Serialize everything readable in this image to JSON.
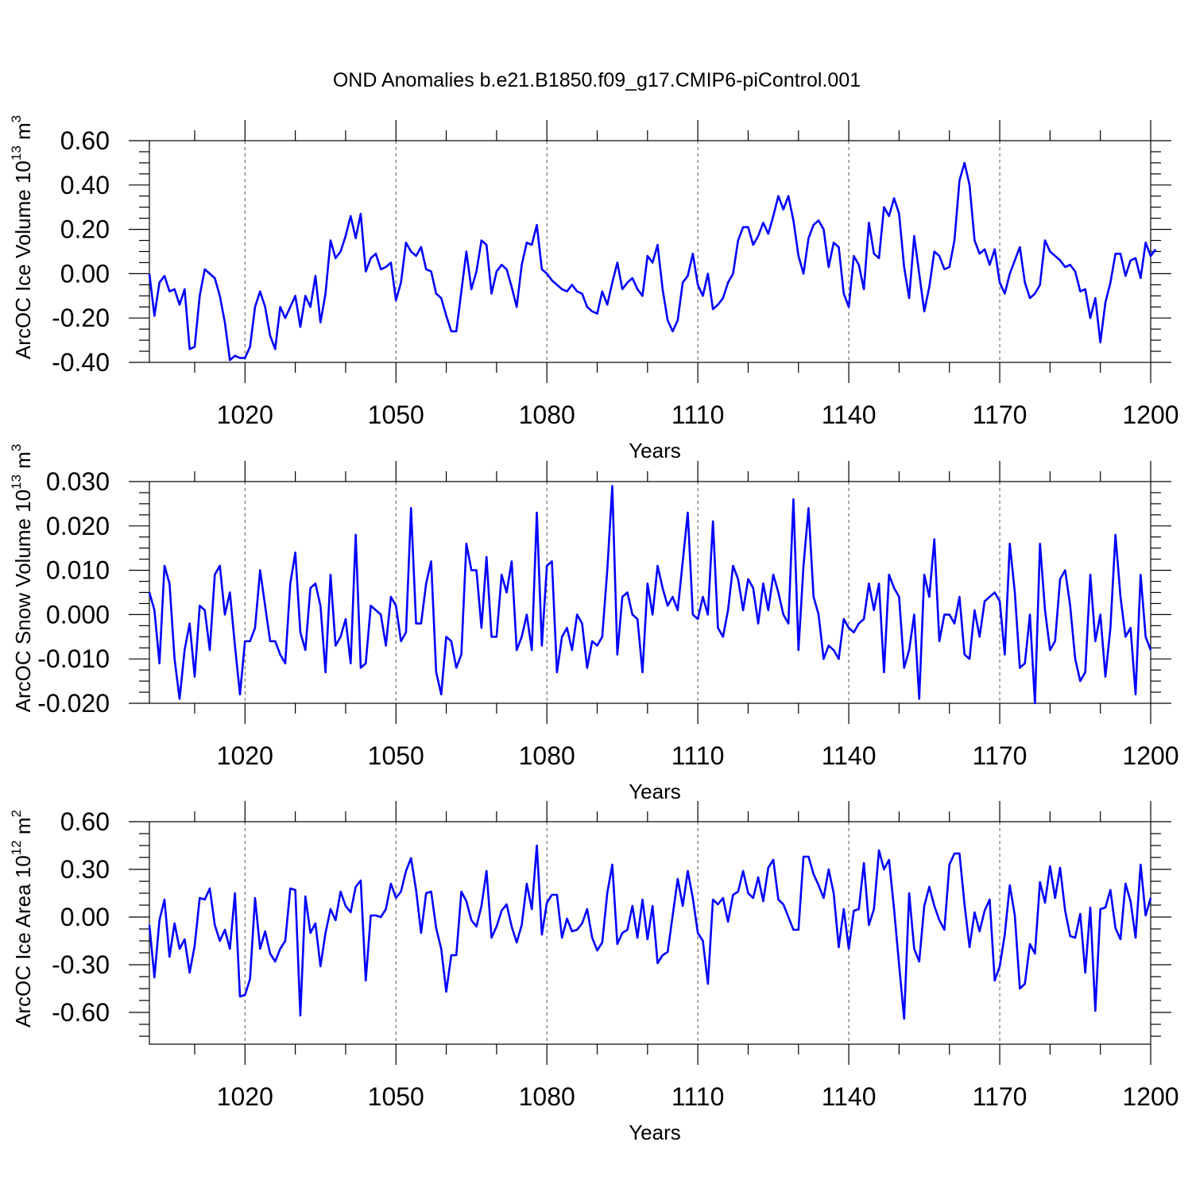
{
  "title": "OND Anomalies b.e21.B1850.f09_g17.CMIP6-piControl.001",
  "chart_data": [
    {
      "type": "line",
      "id": "ice_volume",
      "ylabel": {
        "text": "ArcOC Ice Volume 10",
        "sup": "13",
        "unit": " m",
        "unit_sup": "3"
      },
      "xlabel": "Years",
      "xlim": [
        1001,
        1200
      ],
      "ylim": [
        -0.4,
        0.6
      ],
      "xticks": [
        1020,
        1050,
        1080,
        1110,
        1140,
        1170,
        1200
      ],
      "xtick_labels": [
        "1020",
        "1050",
        "1080",
        "1110",
        "1140",
        "1170",
        "1200"
      ],
      "yticks": [
        -0.4,
        -0.2,
        0.0,
        0.2,
        0.4,
        0.6
      ],
      "ytick_labels": [
        "-0.40",
        "-0.20",
        "0.00",
        "0.20",
        "0.40",
        "0.60"
      ],
      "yminor": [
        -0.35,
        -0.3,
        -0.25,
        -0.15,
        -0.1,
        -0.05,
        0.05,
        0.1,
        0.15,
        0.25,
        0.3,
        0.35,
        0.45,
        0.5,
        0.55
      ],
      "xminor": [
        1010,
        1030,
        1040,
        1060,
        1070,
        1090,
        1100,
        1120,
        1130,
        1150,
        1160,
        1180,
        1190
      ],
      "grid": "dashed vertical at major x ticks",
      "series": [
        {
          "name": "ArcOC Ice Volume",
          "color": "#0000ff",
          "x_start": 1001,
          "values": [
            0.0,
            -0.19,
            -0.04,
            -0.01,
            -0.08,
            -0.07,
            -0.14,
            -0.07,
            -0.34,
            -0.33,
            -0.1,
            0.02,
            0.0,
            -0.02,
            -0.1,
            -0.22,
            -0.39,
            -0.37,
            -0.38,
            -0.38,
            -0.33,
            -0.15,
            -0.08,
            -0.15,
            -0.28,
            -0.34,
            -0.15,
            -0.2,
            -0.15,
            -0.1,
            -0.24,
            -0.1,
            -0.15,
            -0.01,
            -0.22,
            -0.09,
            0.15,
            0.07,
            0.1,
            0.17,
            0.26,
            0.16,
            0.27,
            0.01,
            0.07,
            0.09,
            0.02,
            0.03,
            0.05,
            -0.12,
            -0.04,
            0.14,
            0.1,
            0.08,
            0.12,
            0.02,
            0.01,
            -0.09,
            -0.11,
            -0.19,
            -0.26,
            -0.26,
            -0.08,
            0.1,
            -0.07,
            0.01,
            0.15,
            0.13,
            -0.09,
            0.01,
            0.04,
            0.02,
            -0.06,
            -0.15,
            0.04,
            0.14,
            0.13,
            0.22,
            0.02,
            0.0,
            -0.03,
            -0.05,
            -0.07,
            -0.08,
            -0.05,
            -0.08,
            -0.09,
            -0.15,
            -0.17,
            -0.18,
            -0.08,
            -0.14,
            -0.04,
            0.05,
            -0.07,
            -0.04,
            -0.02,
            -0.07,
            -0.1,
            0.08,
            0.05,
            0.13,
            -0.07,
            -0.21,
            -0.26,
            -0.21,
            -0.04,
            -0.01,
            0.09,
            -0.05,
            -0.1,
            0.0,
            -0.16,
            -0.14,
            -0.11,
            -0.04,
            0.0,
            0.15,
            0.21,
            0.21,
            0.13,
            0.17,
            0.23,
            0.18,
            0.26,
            0.35,
            0.29,
            0.35,
            0.24,
            0.08,
            0.0,
            0.16,
            0.22,
            0.24,
            0.2,
            0.03,
            0.14,
            0.12,
            -0.09,
            -0.15,
            0.08,
            0.04,
            -0.07,
            0.23,
            0.09,
            0.07,
            0.3,
            0.26,
            0.34,
            0.27,
            0.03,
            -0.11,
            0.17,
            0.0,
            -0.17,
            -0.06,
            0.1,
            0.08,
            0.02,
            0.03,
            0.15,
            0.42,
            0.5,
            0.4,
            0.15,
            0.09,
            0.11,
            0.04,
            0.11,
            -0.04,
            -0.09,
            0.0,
            0.06,
            0.12,
            -0.04,
            -0.11,
            -0.09,
            -0.05,
            0.15,
            0.1,
            0.08,
            0.06,
            0.03,
            0.04,
            0.01,
            -0.08,
            -0.07,
            -0.2,
            -0.11,
            -0.31,
            -0.13,
            -0.04,
            0.09,
            0.09,
            -0.01,
            0.06,
            0.07,
            -0.02,
            0.14,
            0.08,
            0.11
          ]
        }
      ]
    },
    {
      "type": "line",
      "id": "snow_volume",
      "ylabel": {
        "text": "ArcOC Snow Volume 10",
        "sup": "13",
        "unit": " m",
        "unit_sup": "3"
      },
      "xlabel": "Years",
      "xlim": [
        1001,
        1200
      ],
      "ylim": [
        -0.02,
        0.03
      ],
      "xticks": [
        1020,
        1050,
        1080,
        1110,
        1140,
        1170,
        1200
      ],
      "xtick_labels": [
        "1020",
        "1050",
        "1080",
        "1110",
        "1140",
        "1170",
        "1200"
      ],
      "yticks": [
        -0.02,
        -0.01,
        0.0,
        0.01,
        0.02,
        0.03
      ],
      "ytick_labels": [
        "-0.020",
        "-0.010",
        "0.000",
        "0.010",
        "0.020",
        "0.030"
      ],
      "yminor": [
        -0.0175,
        -0.015,
        -0.0125,
        -0.0075,
        -0.005,
        -0.0025,
        0.0025,
        0.005,
        0.0075,
        0.0125,
        0.015,
        0.0175,
        0.0225,
        0.025,
        0.0275
      ],
      "xminor": [
        1010,
        1030,
        1040,
        1060,
        1070,
        1090,
        1100,
        1120,
        1130,
        1150,
        1160,
        1180,
        1190
      ],
      "grid": "dashed vertical at major x ticks",
      "series": [
        {
          "name": "ArcOC Snow Volume",
          "color": "#0000ff",
          "x_start": 1001,
          "values": [
            0.005,
            0.001,
            -0.011,
            0.011,
            0.007,
            -0.01,
            -0.019,
            -0.008,
            -0.002,
            -0.014,
            0.002,
            0.001,
            -0.008,
            0.009,
            0.011,
            0.0,
            0.005,
            -0.007,
            -0.018,
            -0.006,
            -0.006,
            -0.003,
            0.01,
            0.002,
            -0.006,
            -0.006,
            -0.009,
            -0.011,
            0.007,
            0.014,
            -0.004,
            -0.008,
            0.006,
            0.007,
            0.002,
            -0.013,
            0.009,
            -0.007,
            -0.005,
            -0.001,
            -0.011,
            0.018,
            -0.012,
            -0.011,
            0.002,
            0.001,
            0.0,
            -0.007,
            0.004,
            0.002,
            -0.006,
            -0.004,
            0.024,
            -0.002,
            -0.002,
            0.007,
            0.012,
            -0.013,
            -0.018,
            -0.005,
            -0.006,
            -0.012,
            -0.009,
            0.016,
            0.01,
            0.01,
            -0.003,
            0.013,
            -0.005,
            -0.005,
            0.009,
            0.005,
            0.012,
            -0.008,
            -0.005,
            0.0,
            -0.008,
            0.023,
            -0.007,
            0.011,
            0.012,
            -0.013,
            -0.005,
            -0.003,
            -0.008,
            0.0,
            -0.002,
            -0.012,
            -0.006,
            -0.007,
            -0.005,
            0.01,
            0.029,
            -0.009,
            0.004,
            0.005,
            0.0,
            -0.001,
            -0.013,
            0.007,
            0.0,
            0.011,
            0.006,
            0.002,
            0.004,
            0.001,
            0.012,
            0.023,
            0.0,
            -0.001,
            0.004,
            0.0,
            0.021,
            -0.003,
            -0.005,
            0.001,
            0.011,
            0.008,
            0.001,
            0.008,
            0.006,
            -0.002,
            0.007,
            0.001,
            0.009,
            0.005,
            0.0,
            -0.002,
            0.026,
            -0.008,
            0.011,
            0.024,
            0.004,
            0.0,
            -0.01,
            -0.007,
            -0.008,
            -0.01,
            -0.001,
            -0.003,
            -0.004,
            -0.002,
            -0.001,
            0.007,
            0.001,
            0.007,
            -0.013,
            0.009,
            0.006,
            0.004,
            -0.012,
            -0.008,
            0.0,
            -0.019,
            0.009,
            0.004,
            0.017,
            -0.006,
            0.0,
            0.0,
            -0.002,
            0.004,
            -0.009,
            -0.01,
            0.001,
            -0.005,
            0.003,
            0.004,
            0.005,
            0.003,
            -0.009,
            0.016,
            0.005,
            -0.012,
            -0.011,
            0.0,
            -0.02,
            0.016,
            0.001,
            -0.008,
            -0.006,
            0.008,
            0.01,
            0.002,
            -0.01,
            -0.015,
            -0.013,
            0.009,
            -0.006,
            0.0,
            -0.014,
            -0.003,
            0.018,
            0.004,
            -0.005,
            -0.003,
            -0.018,
            0.009,
            -0.005,
            -0.008
          ]
        }
      ]
    },
    {
      "type": "line",
      "id": "ice_area",
      "ylabel": {
        "text": "ArcOC Ice Area 10",
        "sup": "12",
        "unit": " m",
        "unit_sup": "2"
      },
      "xlabel": "Years",
      "xlim": [
        1001,
        1200
      ],
      "ylim": [
        -0.8,
        0.6
      ],
      "xticks": [
        1020,
        1050,
        1080,
        1110,
        1140,
        1170,
        1200
      ],
      "xtick_labels": [
        "1020",
        "1050",
        "1080",
        "1110",
        "1140",
        "1170",
        "1200"
      ],
      "yticks": [
        -0.6,
        -0.3,
        0.0,
        0.3,
        0.6
      ],
      "ytick_labels": [
        "-0.60",
        "-0.30",
        "0.00",
        "0.30",
        "0.60"
      ],
      "yminor": [
        -0.75,
        -0.675,
        -0.525,
        -0.45,
        -0.375,
        -0.225,
        -0.15,
        -0.075,
        0.075,
        0.15,
        0.225,
        0.375,
        0.45,
        0.525
      ],
      "xminor": [
        1010,
        1030,
        1040,
        1060,
        1070,
        1090,
        1100,
        1120,
        1130,
        1150,
        1160,
        1180,
        1190
      ],
      "grid": "dashed vertical at major x ticks",
      "series": [
        {
          "name": "ArcOC Ice Area",
          "color": "#0000ff",
          "x_start": 1001,
          "values": [
            -0.05,
            -0.38,
            -0.02,
            0.11,
            -0.25,
            -0.04,
            -0.2,
            -0.14,
            -0.35,
            -0.18,
            0.12,
            0.11,
            0.18,
            -0.05,
            -0.15,
            -0.08,
            -0.2,
            0.15,
            -0.5,
            -0.49,
            -0.39,
            0.12,
            -0.2,
            -0.09,
            -0.23,
            -0.28,
            -0.2,
            -0.15,
            0.18,
            0.17,
            -0.62,
            0.13,
            -0.1,
            -0.04,
            -0.31,
            -0.1,
            0.05,
            -0.02,
            0.16,
            0.07,
            0.03,
            0.19,
            0.23,
            -0.4,
            0.01,
            0.01,
            0.0,
            0.05,
            0.21,
            0.12,
            0.16,
            0.29,
            0.37,
            0.17,
            -0.1,
            0.15,
            0.16,
            -0.07,
            -0.2,
            -0.47,
            -0.24,
            -0.24,
            0.16,
            0.1,
            -0.02,
            -0.06,
            0.07,
            0.29,
            -0.13,
            -0.06,
            0.04,
            0.08,
            -0.06,
            -0.16,
            -0.05,
            0.21,
            0.05,
            0.45,
            -0.11,
            0.09,
            0.14,
            0.14,
            -0.13,
            -0.01,
            -0.09,
            -0.08,
            -0.04,
            0.05,
            -0.13,
            -0.21,
            -0.16,
            0.15,
            0.33,
            -0.17,
            -0.1,
            -0.08,
            0.07,
            -0.13,
            0.11,
            -0.14,
            0.07,
            -0.29,
            -0.24,
            -0.22,
            0.01,
            0.24,
            0.07,
            0.29,
            0.12,
            -0.1,
            -0.15,
            -0.42,
            0.11,
            0.08,
            0.12,
            -0.03,
            0.14,
            0.16,
            0.29,
            0.15,
            0.12,
            0.25,
            0.1,
            0.31,
            0.36,
            0.11,
            0.08,
            0.0,
            -0.08,
            -0.08,
            0.38,
            0.38,
            0.27,
            0.2,
            0.12,
            0.3,
            0.15,
            -0.19,
            0.05,
            -0.2,
            0.04,
            0.05,
            0.34,
            -0.05,
            0.05,
            0.42,
            0.3,
            0.36,
            0.05,
            -0.3,
            -0.64,
            0.15,
            -0.2,
            -0.28,
            0.07,
            0.19,
            0.07,
            -0.02,
            -0.08,
            0.33,
            0.4,
            0.4,
            0.08,
            -0.19,
            0.03,
            -0.09,
            0.04,
            0.11,
            -0.4,
            -0.31,
            -0.11,
            0.2,
            0.01,
            -0.45,
            -0.42,
            -0.17,
            -0.23,
            0.22,
            0.09,
            0.32,
            0.12,
            0.31,
            0.04,
            -0.12,
            -0.13,
            0.02,
            -0.35,
            0.06,
            -0.59,
            0.05,
            0.06,
            0.17,
            -0.07,
            -0.14,
            0.21,
            0.1,
            -0.13,
            0.33,
            0.01,
            0.12
          ]
        }
      ]
    }
  ]
}
